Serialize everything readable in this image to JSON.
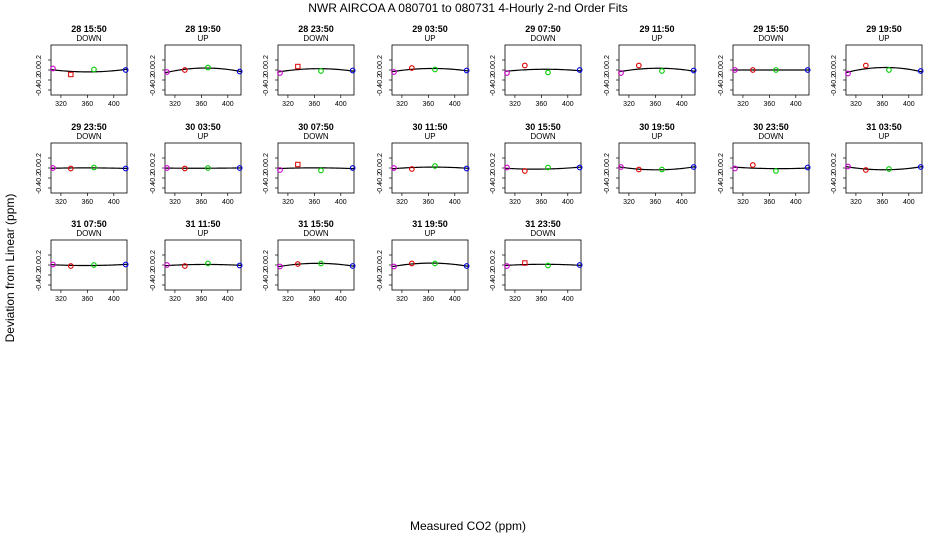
{
  "figure": {
    "title": "NWR   AIRCOA A   080701 to 080731   4-Hourly 2-nd Order Fits",
    "xlabel": "Measured CO2 (ppm)",
    "ylabel": "Deviation from Linear (ppm)"
  },
  "colors": {
    "marker_1": "#cc00cc",
    "marker_2": "#dd0000",
    "marker_3": "#00cc00",
    "marker_4": "#0000dd",
    "fit_line": "#000000"
  },
  "chart_data": {
    "type": "scatter",
    "layout": "small-multiples",
    "xlim": [
      305,
      420
    ],
    "ylim": [
      -0.5,
      0.5
    ],
    "x_ticks": [
      320,
      360,
      400
    ],
    "y_ticks": [
      -0.4,
      -0.2,
      0.0,
      0.2
    ],
    "y_tick_labels": [
      "-0.4",
      "-0.2",
      "0.0",
      "0.2"
    ],
    "marker_x": [
      308,
      335,
      370,
      418
    ],
    "panels": [
      {
        "time": "28 15:50",
        "dir": "DOWN",
        "y": [
          0.03,
          -0.09,
          0.01,
          0.0
        ],
        "sq": [
          0,
          1,
          0,
          0
        ]
      },
      {
        "time": "28 19:50",
        "dir": "UP",
        "y": [
          -0.04,
          0.0,
          0.05,
          -0.03
        ],
        "sq": [
          0,
          0,
          0,
          0
        ]
      },
      {
        "time": "28 23:50",
        "dir": "DOWN",
        "y": [
          -0.06,
          0.07,
          -0.02,
          -0.01
        ],
        "sq": [
          0,
          1,
          0,
          0
        ]
      },
      {
        "time": "29 03:50",
        "dir": "UP",
        "y": [
          -0.04,
          0.04,
          0.01,
          -0.01
        ],
        "sq": [
          0,
          0,
          0,
          0
        ]
      },
      {
        "time": "29 07:50",
        "dir": "DOWN",
        "y": [
          -0.06,
          0.09,
          -0.05,
          0.0
        ],
        "sq": [
          0,
          0,
          0,
          0
        ]
      },
      {
        "time": "29 11:50",
        "dir": "UP",
        "y": [
          -0.06,
          0.09,
          -0.02,
          -0.01
        ],
        "sq": [
          0,
          0,
          0,
          0
        ]
      },
      {
        "time": "29 15:50",
        "dir": "DOWN",
        "y": [
          0.0,
          0.0,
          0.0,
          0.0
        ],
        "sq": [
          0,
          0,
          0,
          0
        ]
      },
      {
        "time": "29 19:50",
        "dir": "UP",
        "y": [
          -0.07,
          0.09,
          0.0,
          -0.02
        ],
        "sq": [
          0,
          0,
          0,
          0
        ]
      },
      {
        "time": "29 23:50",
        "dir": "DOWN",
        "y": [
          0.0,
          -0.01,
          0.01,
          -0.01
        ],
        "sq": [
          0,
          0,
          0,
          0
        ]
      },
      {
        "time": "30 03:50",
        "dir": "UP",
        "y": [
          0.0,
          -0.01,
          0.0,
          0.0
        ],
        "sq": [
          0,
          0,
          0,
          0
        ]
      },
      {
        "time": "30 07:50",
        "dir": "DOWN",
        "y": [
          -0.04,
          0.07,
          -0.05,
          0.0
        ],
        "sq": [
          0,
          1,
          0,
          0
        ]
      },
      {
        "time": "30 11:50",
        "dir": "UP",
        "y": [
          0.0,
          -0.02,
          0.04,
          -0.01
        ],
        "sq": [
          0,
          0,
          0,
          0
        ]
      },
      {
        "time": "30 15:50",
        "dir": "DOWN",
        "y": [
          0.01,
          -0.06,
          0.01,
          0.01
        ],
        "sq": [
          0,
          0,
          0,
          0
        ]
      },
      {
        "time": "30 19:50",
        "dir": "UP",
        "y": [
          0.02,
          -0.03,
          -0.03,
          0.02
        ],
        "sq": [
          0,
          0,
          0,
          0
        ]
      },
      {
        "time": "30 23:50",
        "dir": "DOWN",
        "y": [
          -0.01,
          0.06,
          -0.06,
          0.01
        ],
        "sq": [
          0,
          0,
          0,
          0
        ]
      },
      {
        "time": "31 03:50",
        "dir": "UP",
        "y": [
          0.03,
          -0.04,
          -0.02,
          0.02
        ],
        "sq": [
          0,
          0,
          0,
          0
        ]
      },
      {
        "time": "31 07:50",
        "dir": "DOWN",
        "y": [
          0.01,
          -0.02,
          0.0,
          0.01
        ],
        "sq": [
          0,
          0,
          0,
          0
        ]
      },
      {
        "time": "31 11:50",
        "dir": "UP",
        "y": [
          0.0,
          -0.02,
          0.03,
          -0.01
        ],
        "sq": [
          0,
          0,
          0,
          0
        ]
      },
      {
        "time": "31 15:50",
        "dir": "DOWN",
        "y": [
          -0.03,
          0.02,
          0.03,
          -0.02
        ],
        "sq": [
          0,
          0,
          0,
          0
        ]
      },
      {
        "time": "31 19:50",
        "dir": "UP",
        "y": [
          -0.03,
          0.03,
          0.03,
          -0.02
        ],
        "sq": [
          0,
          0,
          0,
          0
        ]
      },
      {
        "time": "31 23:50",
        "dir": "DOWN",
        "y": [
          -0.02,
          0.04,
          -0.01,
          0.0
        ],
        "sq": [
          0,
          1,
          0,
          0
        ]
      }
    ]
  }
}
